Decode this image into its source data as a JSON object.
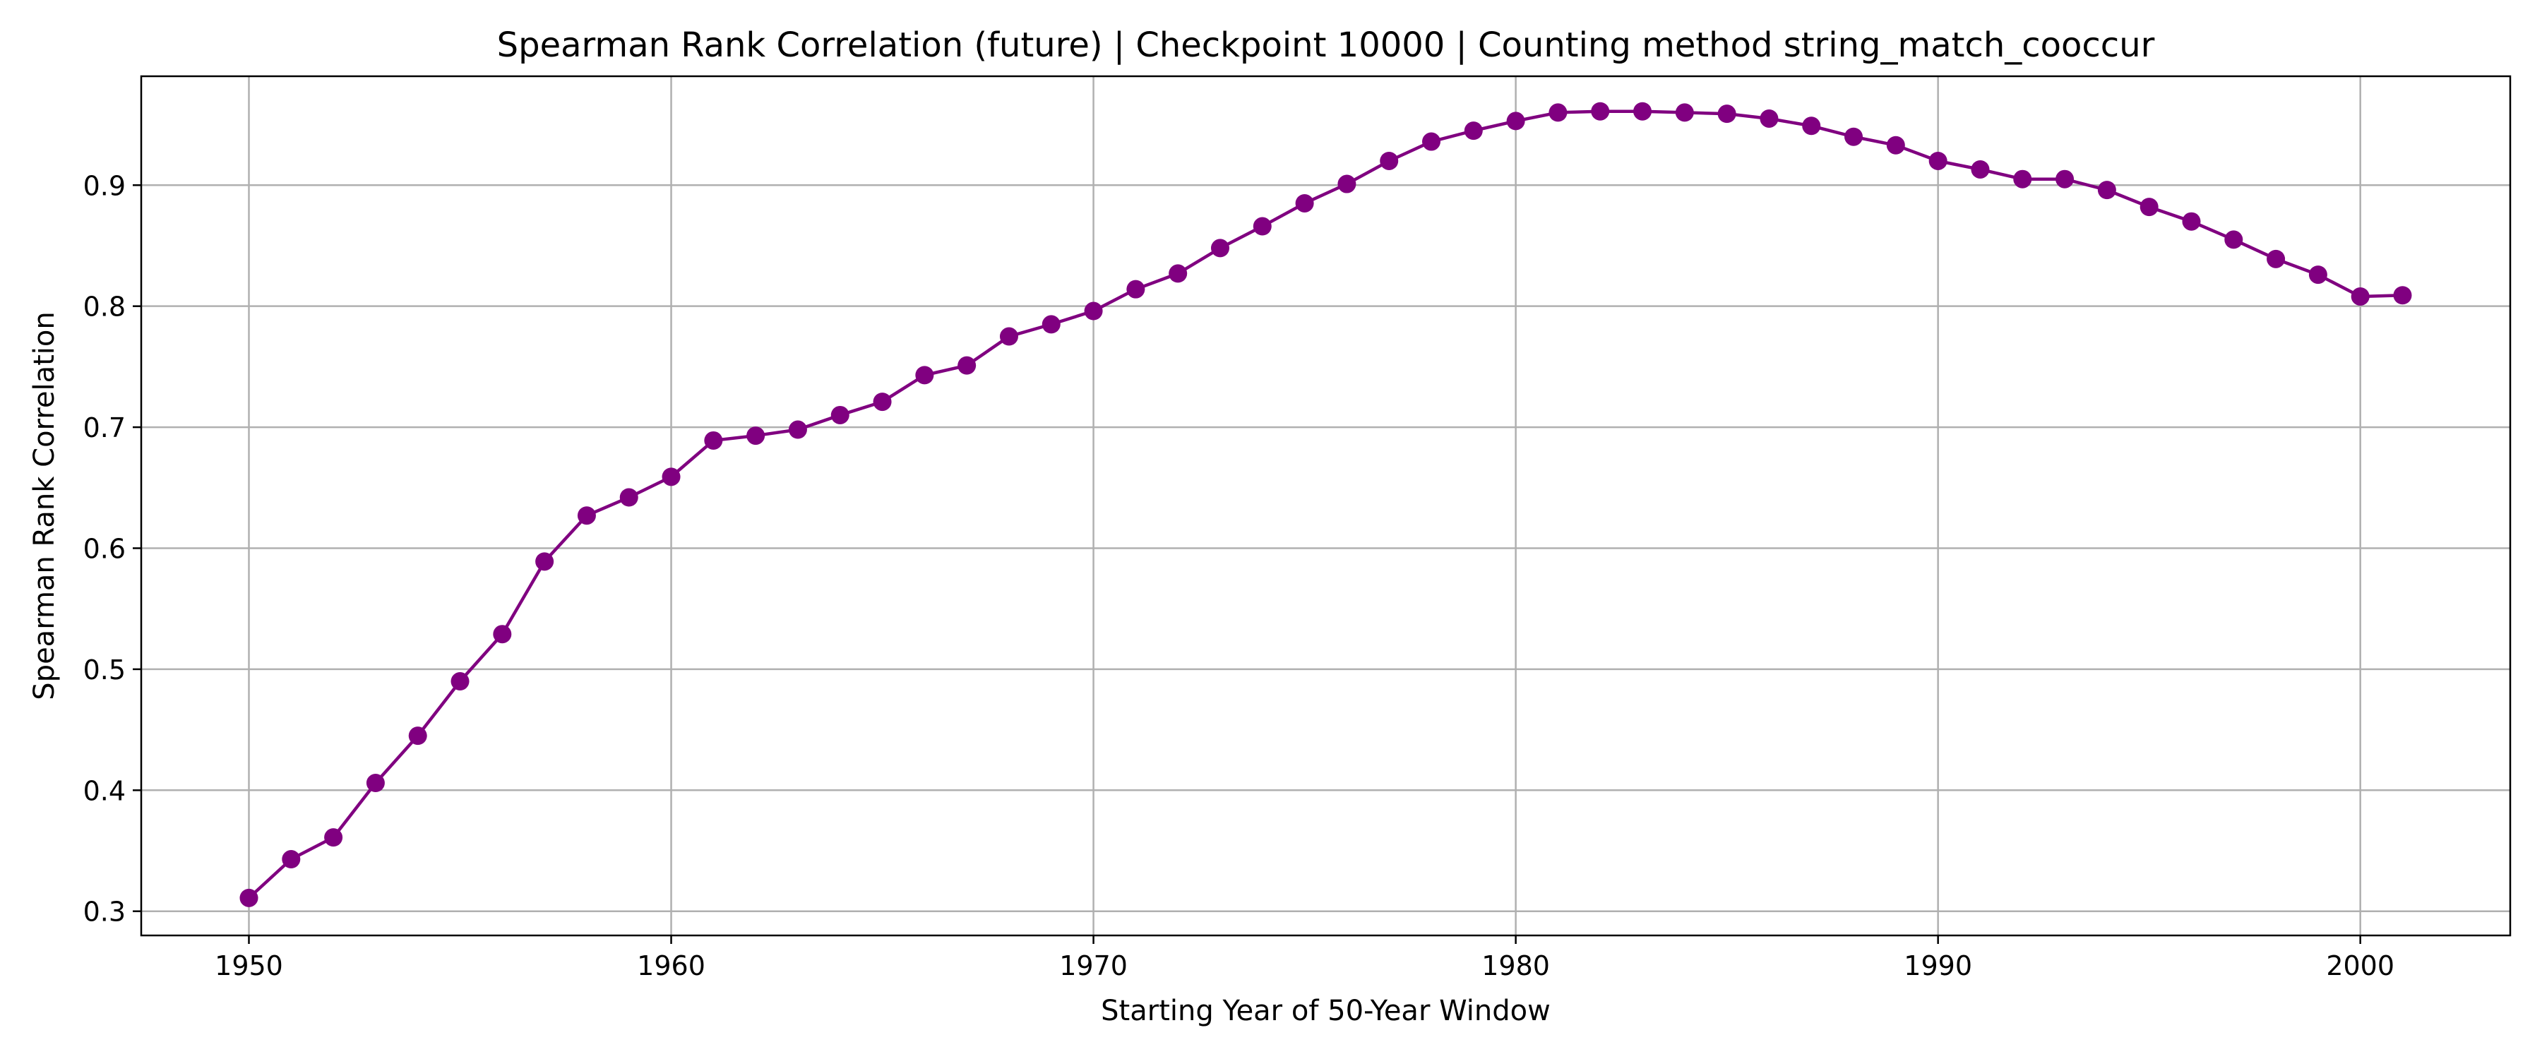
{
  "chart_data": {
    "type": "line",
    "title": "Spearman Rank Correlation (future) | Checkpoint 10000 | Counting method string_match_cooccur",
    "xlabel": "Starting Year of 50-Year Window",
    "ylabel": "Spearman Rank Correlation",
    "xlim": [
      1947.45,
      2003.55
    ],
    "ylim": [
      0.28,
      0.99
    ],
    "xticks": [
      1950,
      1960,
      1970,
      1980,
      1990,
      2000
    ],
    "yticks": [
      0.3,
      0.4,
      0.5,
      0.6,
      0.7,
      0.8,
      0.9
    ],
    "grid": true,
    "color": "#800080",
    "marker": "circle",
    "x": [
      1950,
      1951,
      1952,
      1953,
      1954,
      1955,
      1956,
      1957,
      1958,
      1959,
      1960,
      1961,
      1962,
      1963,
      1964,
      1965,
      1966,
      1967,
      1968,
      1969,
      1970,
      1971,
      1972,
      1973,
      1974,
      1975,
      1976,
      1977,
      1978,
      1979,
      1980,
      1981,
      1982,
      1983,
      1984,
      1985,
      1986,
      1987,
      1988,
      1989,
      1990,
      1991,
      1992,
      1993,
      1994,
      1995,
      1996,
      1997,
      1998,
      1999,
      2000,
      2001
    ],
    "y": [
      0.311,
      0.343,
      0.361,
      0.406,
      0.445,
      0.49,
      0.529,
      0.589,
      0.627,
      0.642,
      0.659,
      0.689,
      0.693,
      0.698,
      0.71,
      0.721,
      0.743,
      0.751,
      0.775,
      0.785,
      0.796,
      0.814,
      0.827,
      0.848,
      0.866,
      0.885,
      0.901,
      0.92,
      0.936,
      0.945,
      0.953,
      0.96,
      0.961,
      0.961,
      0.96,
      0.959,
      0.955,
      0.949,
      0.94,
      0.933,
      0.92,
      0.913,
      0.905,
      0.905,
      0.896,
      0.882,
      0.87,
      0.855,
      0.839,
      0.826,
      0.808,
      0.809
    ]
  }
}
